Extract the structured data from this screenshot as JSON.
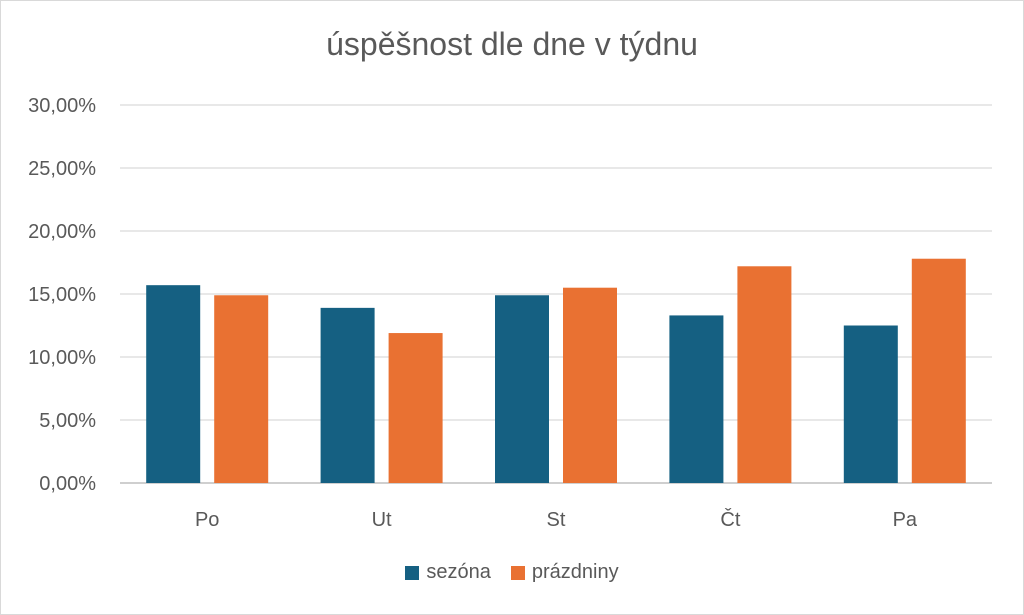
{
  "chart_data": {
    "type": "bar",
    "title": "úspěšnost dle dne v týdnu",
    "categories": [
      "Po",
      "Ut",
      "St",
      "Čt",
      "Pa"
    ],
    "series": [
      {
        "name": "sezóna",
        "color": "#156082",
        "values": [
          0.157,
          0.139,
          0.149,
          0.133,
          0.125
        ]
      },
      {
        "name": "prázdniny",
        "color": "#E97132",
        "values": [
          0.149,
          0.119,
          0.155,
          0.172,
          0.178
        ]
      }
    ],
    "ylim": [
      0,
      0.3
    ],
    "yticks": [
      "0,00%",
      "5,00%",
      "10,00%",
      "15,00%",
      "20,00%",
      "25,00%",
      "30,00%"
    ],
    "grid": true,
    "legend": "bottom"
  }
}
